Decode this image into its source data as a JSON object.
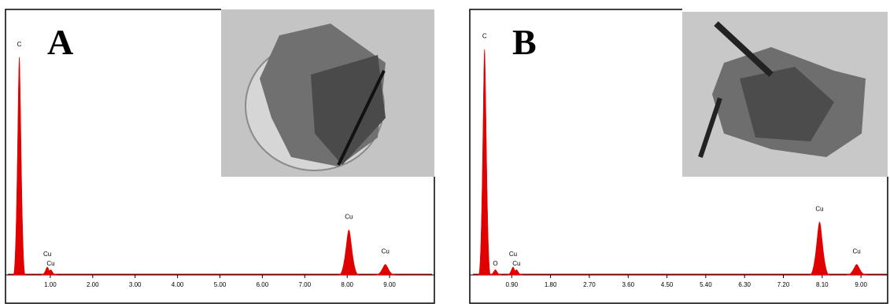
{
  "chart_data": [
    {
      "type": "spectrum",
      "panel_label": "A",
      "color": "#e00000",
      "xlim": [
        0,
        10
      ],
      "ylim": [
        0,
        100
      ],
      "xticks": [
        {
          "value": 1,
          "label": "1.00"
        },
        {
          "value": 2,
          "label": "2.00"
        },
        {
          "value": 3,
          "label": "3.00"
        },
        {
          "value": 4,
          "label": "4.00"
        },
        {
          "value": 5,
          "label": "5.00"
        },
        {
          "value": 6,
          "label": "6.00"
        },
        {
          "value": 7,
          "label": "7.00"
        },
        {
          "value": 8,
          "label": "8.00"
        },
        {
          "value": 9,
          "label": "9.00"
        }
      ],
      "peaks": [
        {
          "label": "C",
          "x": 0.27,
          "y": 82
        },
        {
          "label": "Cu",
          "x": 0.93,
          "y": 3
        },
        {
          "label": "Cu",
          "x": 1.01,
          "y": 2
        },
        {
          "label": "Cu",
          "x": 8.04,
          "y": 17
        },
        {
          "label": "Cu",
          "x": 8.9,
          "y": 4
        }
      ]
    },
    {
      "type": "spectrum",
      "panel_label": "B",
      "color": "#e00000",
      "xlim": [
        0,
        9.6
      ],
      "ylim": [
        0,
        100
      ],
      "xticks": [
        {
          "value": 0.9,
          "label": "0.90"
        },
        {
          "value": 1.8,
          "label": "1.80"
        },
        {
          "value": 2.7,
          "label": "2.70"
        },
        {
          "value": 3.6,
          "label": "3.60"
        },
        {
          "value": 4.5,
          "label": "4.50"
        },
        {
          "value": 5.4,
          "label": "5.40"
        },
        {
          "value": 6.3,
          "label": "6.30"
        },
        {
          "value": 7.2,
          "label": "7.20"
        },
        {
          "value": 8.1,
          "label": "8.10"
        },
        {
          "value": 9,
          "label": "9.00"
        }
      ],
      "peaks": [
        {
          "label": "C",
          "x": 0.27,
          "y": 85
        },
        {
          "label": "O",
          "x": 0.52,
          "y": 2
        },
        {
          "label": "Cu",
          "x": 0.93,
          "y": 3
        },
        {
          "label": "Cu",
          "x": 1.01,
          "y": 2
        },
        {
          "label": "Cu",
          "x": 8.04,
          "y": 20
        },
        {
          "label": "Cu",
          "x": 8.9,
          "y": 4
        }
      ]
    }
  ]
}
